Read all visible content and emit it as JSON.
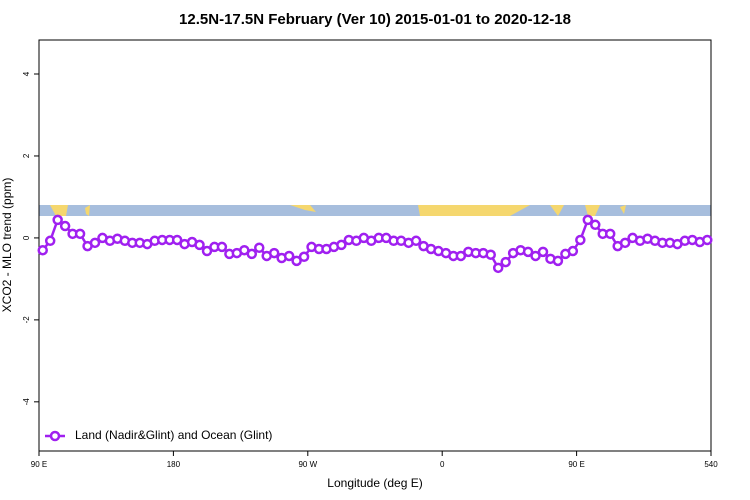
{
  "chart_data": {
    "type": "line",
    "title": "12.5N-17.5N February (Ver 10)   2015-01-01 to 2020-12-18",
    "x_label": "Longitude (deg E)",
    "y_label": "XCO2 - MLO trend (ppm)",
    "xlim": [
      90,
      540
    ],
    "xticks": [
      {
        "value": 90,
        "label": "90 E"
      },
      180,
      {
        "value": 270,
        "label": "90 W"
      },
      {
        "value": 360,
        "label": "0"
      },
      {
        "value": 450,
        "label": "90 E"
      },
      540
    ],
    "ylim": [
      -5.2,
      4.83
    ],
    "yticks": [
      -4,
      -2,
      0,
      2,
      4
    ],
    "legend": "bottom-left",
    "x": [
      92.5,
      97.5,
      102.5,
      107.5,
      112.5,
      117.5,
      122.5,
      127.5,
      132.5,
      137.5,
      142.5,
      147.5,
      152.5,
      157.5,
      162.5,
      167.5,
      172.5,
      177.5,
      182.5,
      187.5,
      192.5,
      197.5,
      202.5,
      207.5,
      212.5,
      217.5,
      222.5,
      227.5,
      232.5,
      237.5,
      242.5,
      247.5,
      252.5,
      257.5,
      262.5,
      267.5,
      272.5,
      277.5,
      282.5,
      287.5,
      292.5,
      297.5,
      302.5,
      307.5,
      312.5,
      317.5,
      322.5,
      327.5,
      332.5,
      337.5,
      342.5,
      347.5,
      352.5,
      357.5,
      362.5,
      367.5,
      372.5,
      377.5,
      382.5,
      387.5,
      392.5,
      397.5,
      402.5,
      407.5,
      412.5,
      417.5,
      422.5,
      427.5,
      432.5,
      437.5,
      442.5,
      447.5,
      452.5,
      457.5,
      462.5,
      467.5,
      472.5,
      477.5,
      482.5,
      487.5,
      492.5,
      497.5,
      502.5,
      507.5,
      512.5,
      517.5,
      522.5,
      527.5,
      532.5,
      537.5
    ],
    "series": [
      {
        "name": "Land (Nadir&Glint) and Ocean (Glint)",
        "color": "#a020f0",
        "values": [
          -0.3,
          -0.07,
          0.44,
          0.29,
          0.1,
          0.1,
          -0.2,
          -0.12,
          0,
          -0.07,
          -0.02,
          -0.07,
          -0.12,
          -0.12,
          -0.15,
          -0.07,
          -0.05,
          -0.05,
          -0.05,
          -0.15,
          -0.1,
          -0.17,
          -0.32,
          -0.22,
          -0.22,
          -0.39,
          -0.37,
          -0.3,
          -0.39,
          -0.24,
          -0.44,
          -0.37,
          -0.49,
          -0.44,
          -0.56,
          -0.46,
          -0.22,
          -0.27,
          -0.27,
          -0.22,
          -0.17,
          -0.05,
          -0.07,
          0,
          -0.07,
          0,
          0,
          -0.07,
          -0.07,
          -0.12,
          -0.07,
          -0.2,
          -0.27,
          -0.32,
          -0.37,
          -0.44,
          -0.44,
          -0.34,
          -0.37,
          -0.37,
          -0.41,
          -0.73,
          -0.59,
          -0.37,
          -0.3,
          -0.34,
          -0.44,
          -0.34,
          -0.51,
          -0.56,
          -0.39,
          -0.32,
          -0.05,
          0.44,
          0.32,
          0.1,
          0.1,
          -0.2,
          -0.12,
          0,
          -0.07,
          -0.02,
          -0.07,
          -0.12,
          -0.12,
          -0.15,
          -0.07,
          -0.05,
          -0.1,
          -0.05
        ]
      }
    ]
  }
}
